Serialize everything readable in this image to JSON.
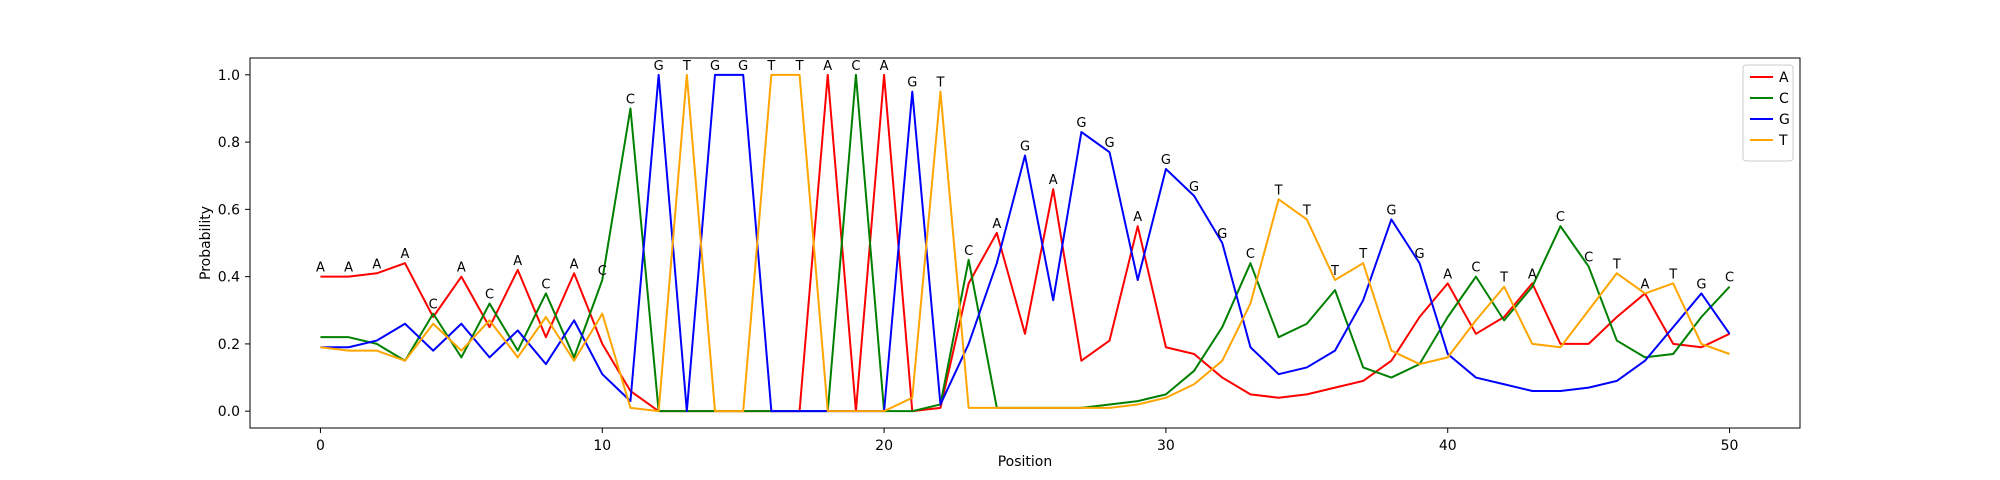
{
  "chart_data": {
    "type": "line",
    "title": "",
    "xlabel": "Position",
    "ylabel": "Probability",
    "xlim": [
      -2.5,
      52.5
    ],
    "ylim": [
      -0.05,
      1.05
    ],
    "xticks": [
      0,
      10,
      20,
      30,
      40,
      50
    ],
    "yticks": [
      0.0,
      0.2,
      0.4,
      0.6,
      0.8,
      1.0
    ],
    "xtick_labels": [
      "0",
      "10",
      "20",
      "30",
      "40",
      "50"
    ],
    "ytick_labels": [
      "0.0",
      "0.2",
      "0.4",
      "0.6",
      "0.8",
      "1.0"
    ],
    "grid": false,
    "legend": "top-right",
    "x": [
      0,
      1,
      2,
      3,
      4,
      5,
      6,
      7,
      8,
      9,
      10,
      11,
      12,
      13,
      14,
      15,
      16,
      17,
      18,
      19,
      20,
      21,
      22,
      23,
      24,
      25,
      26,
      27,
      28,
      29,
      30,
      31,
      32,
      33,
      34,
      35,
      36,
      37,
      38,
      39,
      40,
      41,
      42,
      43,
      44,
      45,
      46,
      47,
      48,
      49,
      50
    ],
    "series": [
      {
        "name": "A",
        "color": "#ff0000",
        "values": [
          0.4,
          0.4,
          0.41,
          0.44,
          0.28,
          0.4,
          0.25,
          0.42,
          0.22,
          0.41,
          0.2,
          0.06,
          0.0,
          0.0,
          0.0,
          0.0,
          0.0,
          0.0,
          1.0,
          0.0,
          1.0,
          0.0,
          0.01,
          0.38,
          0.53,
          0.23,
          0.66,
          0.15,
          0.21,
          0.55,
          0.19,
          0.17,
          0.1,
          0.05,
          0.04,
          0.05,
          0.07,
          0.09,
          0.15,
          0.28,
          0.38,
          0.23,
          0.28,
          0.38,
          0.2,
          0.2,
          0.28,
          0.35,
          0.2,
          0.19,
          0.23
        ]
      },
      {
        "name": "C",
        "color": "#008000",
        "values": [
          0.22,
          0.22,
          0.2,
          0.15,
          0.29,
          0.16,
          0.32,
          0.18,
          0.35,
          0.16,
          0.39,
          0.9,
          0.0,
          0.0,
          0.0,
          0.0,
          0.0,
          0.0,
          0.0,
          1.0,
          0.0,
          0.0,
          0.02,
          0.45,
          0.01,
          0.01,
          0.01,
          0.01,
          0.02,
          0.03,
          0.05,
          0.12,
          0.25,
          0.44,
          0.22,
          0.26,
          0.36,
          0.13,
          0.1,
          0.14,
          0.28,
          0.4,
          0.27,
          0.37,
          0.55,
          0.43,
          0.21,
          0.16,
          0.17,
          0.28,
          0.37
        ]
      },
      {
        "name": "G",
        "color": "#0000ff",
        "values": [
          0.19,
          0.19,
          0.21,
          0.26,
          0.18,
          0.26,
          0.16,
          0.24,
          0.14,
          0.27,
          0.11,
          0.03,
          1.0,
          0.0,
          1.0,
          1.0,
          0.0,
          0.0,
          0.0,
          0.0,
          0.0,
          0.95,
          0.02,
          0.2,
          0.44,
          0.76,
          0.33,
          0.83,
          0.77,
          0.39,
          0.72,
          0.64,
          0.5,
          0.19,
          0.11,
          0.13,
          0.18,
          0.33,
          0.57,
          0.44,
          0.17,
          0.1,
          0.08,
          0.06,
          0.06,
          0.07,
          0.09,
          0.15,
          0.25,
          0.35,
          0.23
        ]
      },
      {
        "name": "T",
        "color": "#ffa500",
        "values": [
          0.19,
          0.18,
          0.18,
          0.15,
          0.26,
          0.18,
          0.27,
          0.16,
          0.28,
          0.15,
          0.29,
          0.01,
          0.0,
          1.0,
          0.0,
          0.0,
          1.0,
          1.0,
          0.0,
          0.0,
          0.0,
          0.04,
          0.95,
          0.01,
          0.01,
          0.01,
          0.01,
          0.01,
          0.01,
          0.02,
          0.04,
          0.08,
          0.15,
          0.32,
          0.63,
          0.57,
          0.39,
          0.44,
          0.18,
          0.14,
          0.16,
          0.27,
          0.37,
          0.2,
          0.19,
          0.3,
          0.41,
          0.35,
          0.38,
          0.2,
          0.17
        ]
      }
    ],
    "annotations": [
      {
        "x": 0,
        "y": 0.4,
        "text": "A"
      },
      {
        "x": 1,
        "y": 0.4,
        "text": "A"
      },
      {
        "x": 2,
        "y": 0.41,
        "text": "A"
      },
      {
        "x": 3,
        "y": 0.44,
        "text": "A"
      },
      {
        "x": 4,
        "y": 0.29,
        "text": "C"
      },
      {
        "x": 5,
        "y": 0.4,
        "text": "A"
      },
      {
        "x": 6,
        "y": 0.32,
        "text": "C"
      },
      {
        "x": 7,
        "y": 0.42,
        "text": "A"
      },
      {
        "x": 8,
        "y": 0.35,
        "text": "C"
      },
      {
        "x": 9,
        "y": 0.41,
        "text": "A"
      },
      {
        "x": 10,
        "y": 0.39,
        "text": "C"
      },
      {
        "x": 11,
        "y": 0.9,
        "text": "C"
      },
      {
        "x": 12,
        "y": 1.0,
        "text": "G"
      },
      {
        "x": 13,
        "y": 1.0,
        "text": "T"
      },
      {
        "x": 14,
        "y": 1.0,
        "text": "G"
      },
      {
        "x": 15,
        "y": 1.0,
        "text": "G"
      },
      {
        "x": 16,
        "y": 1.0,
        "text": "T"
      },
      {
        "x": 17,
        "y": 1.0,
        "text": "T"
      },
      {
        "x": 18,
        "y": 1.0,
        "text": "A"
      },
      {
        "x": 19,
        "y": 1.0,
        "text": "C"
      },
      {
        "x": 20,
        "y": 1.0,
        "text": "A"
      },
      {
        "x": 21,
        "y": 0.95,
        "text": "G"
      },
      {
        "x": 22,
        "y": 0.95,
        "text": "T"
      },
      {
        "x": 23,
        "y": 0.45,
        "text": "C"
      },
      {
        "x": 24,
        "y": 0.53,
        "text": "A"
      },
      {
        "x": 25,
        "y": 0.76,
        "text": "G"
      },
      {
        "x": 26,
        "y": 0.66,
        "text": "A"
      },
      {
        "x": 27,
        "y": 0.83,
        "text": "G"
      },
      {
        "x": 28,
        "y": 0.77,
        "text": "G"
      },
      {
        "x": 29,
        "y": 0.55,
        "text": "A"
      },
      {
        "x": 30,
        "y": 0.72,
        "text": "G"
      },
      {
        "x": 31,
        "y": 0.64,
        "text": "G"
      },
      {
        "x": 32,
        "y": 0.5,
        "text": "G"
      },
      {
        "x": 33,
        "y": 0.44,
        "text": "C"
      },
      {
        "x": 34,
        "y": 0.63,
        "text": "T"
      },
      {
        "x": 35,
        "y": 0.57,
        "text": "T"
      },
      {
        "x": 36,
        "y": 0.39,
        "text": "T"
      },
      {
        "x": 37,
        "y": 0.44,
        "text": "T"
      },
      {
        "x": 38,
        "y": 0.57,
        "text": "G"
      },
      {
        "x": 39,
        "y": 0.44,
        "text": "G"
      },
      {
        "x": 40,
        "y": 0.38,
        "text": "A"
      },
      {
        "x": 41,
        "y": 0.4,
        "text": "C"
      },
      {
        "x": 42,
        "y": 0.37,
        "text": "T"
      },
      {
        "x": 43,
        "y": 0.38,
        "text": "A"
      },
      {
        "x": 44,
        "y": 0.55,
        "text": "C"
      },
      {
        "x": 45,
        "y": 0.43,
        "text": "C"
      },
      {
        "x": 46,
        "y": 0.41,
        "text": "T"
      },
      {
        "x": 47,
        "y": 0.35,
        "text": "A"
      },
      {
        "x": 48,
        "y": 0.38,
        "text": "T"
      },
      {
        "x": 49,
        "y": 0.35,
        "text": "G"
      },
      {
        "x": 50,
        "y": 0.37,
        "text": "C"
      }
    ]
  }
}
